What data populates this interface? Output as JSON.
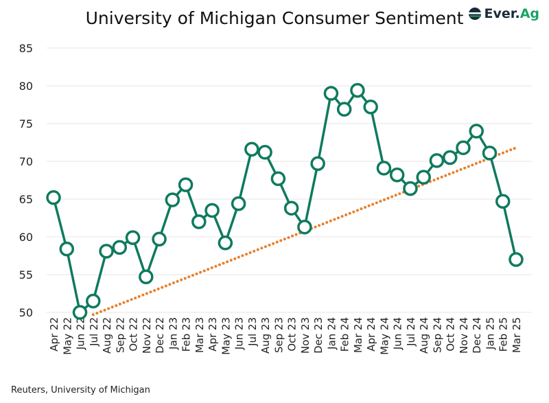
{
  "chart_data": {
    "type": "line",
    "title": "University of Michigan Consumer Sentiment",
    "xlabel": "",
    "ylabel": "",
    "ylim": [
      50,
      85
    ],
    "yticks": [
      50,
      55,
      60,
      65,
      70,
      75,
      80,
      85
    ],
    "grid": true,
    "categories": [
      "Apr 22",
      "May 22",
      "Jun 22",
      "Jul 22",
      "Aug 22",
      "Sep 22",
      "Oct 22",
      "Nov 22",
      "Dec 22",
      "Jan 23",
      "Feb 23",
      "Mar 23",
      "Apr 23",
      "May 23",
      "Jun 23",
      "Jul 23",
      "Aug 23",
      "Sep 23",
      "Oct 23",
      "Nov 23",
      "Dec 23",
      "Jan 24",
      "Feb 24",
      "Mar 24",
      "Apr 24",
      "May 24",
      "Jun 24",
      "Jul 24",
      "Aug 24",
      "Sep 24",
      "Oct 24",
      "Nov 24",
      "Dec 24",
      "Jan 25",
      "Feb 25",
      "Mar 25"
    ],
    "series": [
      {
        "values": [
          65.2,
          58.4,
          50.0,
          51.5,
          58.1,
          58.6,
          59.9,
          54.7,
          59.7,
          64.9,
          66.9,
          62.0,
          63.5,
          59.2,
          64.4,
          71.6,
          71.2,
          67.7,
          63.8,
          61.3,
          69.7,
          79.0,
          76.9,
          79.4,
          77.2,
          69.1,
          68.2,
          66.4,
          67.9,
          70.1,
          70.5,
          71.8,
          74.0,
          71.1,
          64.7,
          57.0
        ],
        "color": "#0f7a5e"
      }
    ],
    "trendline": {
      "from": {
        "x": "Jul 22",
        "y": 49.7
      },
      "to": {
        "x": "Mar 25",
        "y": 71.8
      },
      "color": "#e87f2a",
      "style": "dotted"
    }
  },
  "source": "Reuters, University of Michigan",
  "logo": {
    "text_main": "Ever.",
    "text_accent": "Ag",
    "colors": {
      "main": "#1b2a3a",
      "accent": "#1aa364"
    }
  }
}
